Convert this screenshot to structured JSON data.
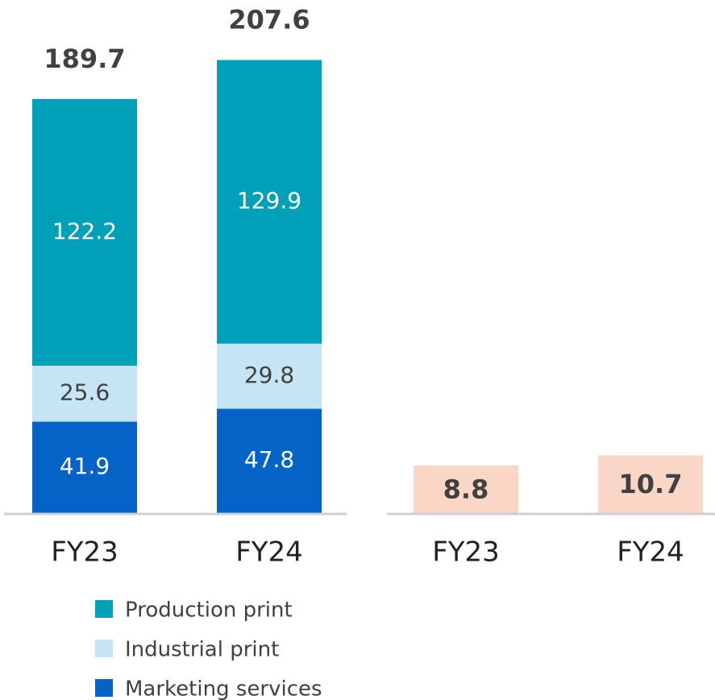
{
  "chart_data": [
    {
      "type": "stacked_bar",
      "categories": [
        "FY23",
        "FY24"
      ],
      "series": [
        {
          "name": "Marketing services",
          "color": "#0563c8",
          "values": [
            41.9,
            47.8
          ]
        },
        {
          "name": "Industrial print",
          "color": "#c5e5f5",
          "values": [
            25.6,
            29.8
          ]
        },
        {
          "name": "Production print",
          "color": "#00a0b8",
          "values": [
            122.2,
            129.9
          ]
        }
      ],
      "totals": [
        189.7,
        207.6
      ],
      "ylim": [
        0,
        235
      ]
    },
    {
      "type": "bar",
      "categories": [
        "FY23",
        "FY24"
      ],
      "values": [
        8.8,
        10.7
      ],
      "color": "#f9d6c5",
      "ylim": [
        0,
        95
      ]
    }
  ]
}
